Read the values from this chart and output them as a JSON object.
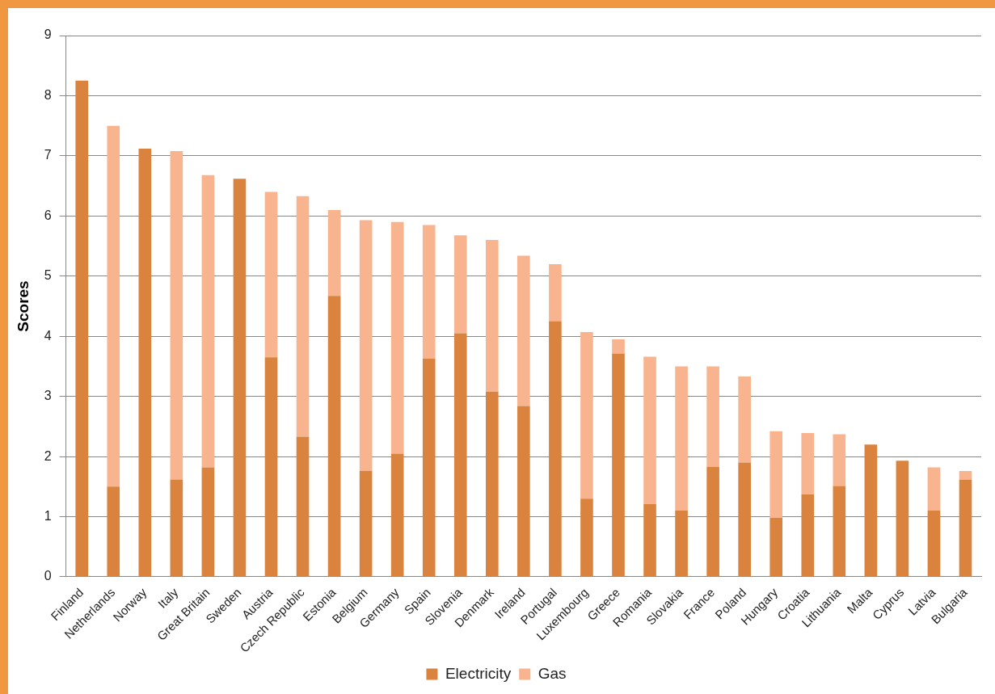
{
  "chart_data": {
    "type": "bar",
    "stacked": true,
    "ylabel": "Scores",
    "categories": [
      "Finland",
      "Netherlands",
      "Norway",
      "Italy",
      "Great Britain",
      "Sweden",
      "Austria",
      "Czech Republic",
      "Estonia",
      "Belgium",
      "Germany",
      "Spain",
      "Slovenia",
      "Denmark",
      "Ireland",
      "Portugal",
      "Luxembourg",
      "Greece",
      "Romania",
      "Slovakia",
      "France",
      "Poland",
      "Hungary",
      "Croatia",
      "Lithuania",
      "Malta",
      "Cyprus",
      "Latvia",
      "Bulgaria"
    ],
    "series": [
      {
        "name": "Electricity",
        "color": "#d9833e",
        "values": [
          8.25,
          1.5,
          7.12,
          1.62,
          1.82,
          6.62,
          3.65,
          2.33,
          4.67,
          1.76,
          2.05,
          3.63,
          4.05,
          3.08,
          2.84,
          4.25,
          1.3,
          3.71,
          1.21,
          1.1,
          1.83,
          1.9,
          0.98,
          1.37,
          1.51,
          2.2,
          1.93,
          1.1,
          1.62
        ]
      },
      {
        "name": "Gas",
        "color": "#f8b48e",
        "values": [
          null,
          6.0,
          null,
          5.46,
          4.86,
          null,
          2.75,
          4.0,
          1.43,
          4.17,
          3.85,
          2.22,
          1.63,
          2.52,
          2.5,
          0.95,
          2.77,
          0.24,
          2.45,
          2.4,
          1.67,
          1.43,
          1.44,
          1.02,
          0.86,
          null,
          null,
          0.72,
          0.14
        ]
      }
    ],
    "ylim": [
      0,
      9
    ],
    "yticks": [
      0,
      1,
      2,
      3,
      4,
      5,
      6,
      7,
      8,
      9
    ],
    "grid": "y",
    "legend": "bottom"
  }
}
